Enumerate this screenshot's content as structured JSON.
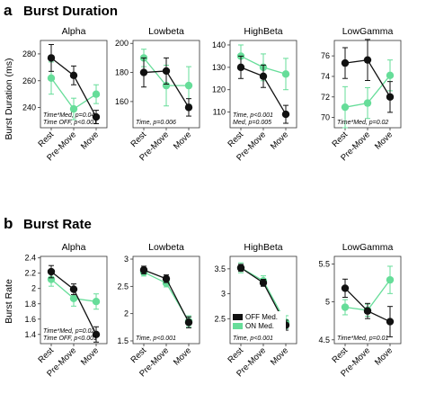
{
  "figure": {
    "rows": [
      {
        "letter": "a",
        "title": "Burst Duration",
        "ylabel": "Burst Duration (ms)"
      },
      {
        "letter": "b",
        "title": "Burst Rate",
        "ylabel": "Burst Rate"
      }
    ]
  },
  "chart_data": [
    {
      "type": "line",
      "row": 0,
      "col": 0,
      "title": "Alpha",
      "categories": [
        "Rest",
        "Pre-Move",
        "Move"
      ],
      "ylim": [
        225,
        290
      ],
      "yticks": [
        240,
        260,
        280
      ],
      "series": [
        {
          "key": "off",
          "values": [
            277,
            264,
            233
          ],
          "err": [
            10,
            7,
            5
          ]
        },
        {
          "key": "on",
          "values": [
            262,
            239,
            250
          ],
          "err": [
            12,
            8,
            7
          ]
        }
      ],
      "annotations": [
        "Time*Med, p=0.04",
        "Time OFF, p<0.001"
      ],
      "colors": {
        "off": "#111111",
        "on": "#66dd99"
      }
    },
    {
      "type": "line",
      "row": 0,
      "col": 1,
      "title": "Lowbeta",
      "categories": [
        "Rest",
        "Pre-Move",
        "Move"
      ],
      "ylim": [
        142,
        202
      ],
      "yticks": [
        160,
        180,
        200
      ],
      "series": [
        {
          "key": "off",
          "values": [
            180,
            181,
            156
          ],
          "err": [
            10,
            9,
            6
          ]
        },
        {
          "key": "on",
          "values": [
            190,
            171,
            171
          ],
          "err": [
            6,
            14,
            13
          ]
        }
      ],
      "annotations": [
        "Time, p=0.006"
      ],
      "colors": {
        "off": "#111111",
        "on": "#66dd99"
      }
    },
    {
      "type": "line",
      "row": 0,
      "col": 2,
      "title": "HighBeta",
      "categories": [
        "Rest",
        "Pre-Move",
        "Move"
      ],
      "ylim": [
        103,
        142
      ],
      "yticks": [
        110,
        120,
        130,
        140
      ],
      "series": [
        {
          "key": "off",
          "values": [
            130,
            126,
            109
          ],
          "err": [
            5,
            5,
            4
          ]
        },
        {
          "key": "on",
          "values": [
            135,
            130,
            127
          ],
          "err": [
            5,
            6,
            7
          ]
        }
      ],
      "annotations": [
        "Time, p<0.001",
        "Med, p=0.005"
      ],
      "colors": {
        "off": "#111111",
        "on": "#66dd99"
      }
    },
    {
      "type": "line",
      "row": 0,
      "col": 3,
      "title": "LowGamma",
      "categories": [
        "Rest",
        "Pre-Move",
        "Move"
      ],
      "ylim": [
        69,
        77.5
      ],
      "yticks": [
        70,
        72,
        74,
        76
      ],
      "series": [
        {
          "key": "off",
          "values": [
            75.3,
            75.6,
            72.0
          ],
          "err": [
            1.5,
            2.0,
            1.5
          ]
        },
        {
          "key": "on",
          "values": [
            71.0,
            71.4,
            74.1
          ],
          "err": [
            2.0,
            1.5,
            1.5
          ]
        }
      ],
      "annotations": [
        "Time*Med, p=0.02"
      ],
      "colors": {
        "off": "#111111",
        "on": "#66dd99"
      }
    },
    {
      "type": "line",
      "row": 1,
      "col": 0,
      "title": "Alpha",
      "categories": [
        "Rest",
        "Pre-Move",
        "Move"
      ],
      "ylim": [
        1.28,
        2.42
      ],
      "yticks": [
        1.4,
        1.6,
        1.8,
        2.0,
        2.2,
        2.4
      ],
      "series": [
        {
          "key": "off",
          "values": [
            2.22,
            1.99,
            1.4
          ],
          "err": [
            0.08,
            0.07,
            0.1
          ]
        },
        {
          "key": "on",
          "values": [
            2.12,
            1.87,
            1.83
          ],
          "err": [
            0.09,
            0.1,
            0.1
          ]
        }
      ],
      "annotations": [
        "Time*Med, p=0.02",
        "Time OFF, p<0.001"
      ],
      "colors": {
        "off": "#111111",
        "on": "#66dd99"
      }
    },
    {
      "type": "line",
      "row": 1,
      "col": 1,
      "title": "Lowbeta",
      "categories": [
        "Rest",
        "Pre-Move",
        "Move"
      ],
      "ylim": [
        1.45,
        3.05
      ],
      "yticks": [
        1.5,
        2,
        2.5,
        3
      ],
      "series": [
        {
          "key": "off",
          "values": [
            2.8,
            2.64,
            1.84
          ],
          "err": [
            0.07,
            0.07,
            0.1
          ]
        },
        {
          "key": "on",
          "values": [
            2.76,
            2.56,
            1.86
          ],
          "err": [
            0.07,
            0.07,
            0.1
          ]
        }
      ],
      "annotations": [
        "Time, p<0.001"
      ],
      "colors": {
        "off": "#111111",
        "on": "#66dd99"
      }
    },
    {
      "type": "line",
      "row": 1,
      "col": 2,
      "title": "HighBeta",
      "categories": [
        "Rest",
        "Pre-Move",
        "Move"
      ],
      "ylim": [
        2.0,
        3.75
      ],
      "yticks": [
        2.5,
        3,
        3.5
      ],
      "series": [
        {
          "key": "off",
          "values": [
            3.52,
            3.22,
            2.37
          ],
          "err": [
            0.07,
            0.07,
            0.1
          ]
        },
        {
          "key": "on",
          "values": [
            3.52,
            3.26,
            2.43
          ],
          "err": [
            0.1,
            0.1,
            0.13
          ]
        }
      ],
      "annotations": [
        "Time, p<0.001"
      ],
      "colors": {
        "off": "#111111",
        "on": "#66dd99"
      },
      "legend": {
        "entries": [
          {
            "key": "off",
            "label": "OFF Med."
          },
          {
            "key": "on",
            "label": "ON Med."
          }
        ]
      }
    },
    {
      "type": "line",
      "row": 1,
      "col": 3,
      "title": "LowGamma",
      "categories": [
        "Rest",
        "Pre-Move",
        "Move"
      ],
      "ylim": [
        4.45,
        5.6
      ],
      "yticks": [
        4.5,
        5,
        5.5
      ],
      "series": [
        {
          "key": "off",
          "values": [
            5.18,
            4.88,
            4.74
          ],
          "err": [
            0.12,
            0.1,
            0.2
          ]
        },
        {
          "key": "on",
          "values": [
            4.93,
            4.89,
            5.29
          ],
          "err": [
            0.1,
            0.08,
            0.18
          ]
        }
      ],
      "annotations": [
        "Time*Med, p=0.01"
      ],
      "colors": {
        "off": "#111111",
        "on": "#66dd99"
      }
    }
  ]
}
